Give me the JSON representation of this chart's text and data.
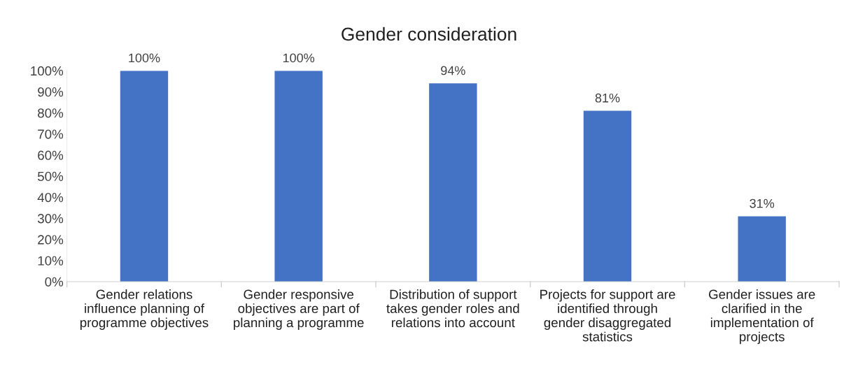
{
  "chart_data": {
    "type": "bar",
    "title": "Gender consideration",
    "categories": [
      "Gender relations\ninfluence planning of\nprogramme objectives",
      "Gender responsive\nobjectives are part of\nplanning a programme",
      "Distribution of support\ntakes gender roles and\nrelations into account",
      "Projects for support are\nidentified through\ngender disaggregated\nstatistics",
      "Gender issues are\nclarified in the\nimplementation of\nprojects"
    ],
    "values": [
      100,
      100,
      94,
      81,
      31
    ],
    "value_labels": [
      "100%",
      "100%",
      "94%",
      "81%",
      "31%"
    ],
    "color": "#4472c4",
    "ylim": [
      0,
      100
    ],
    "yticks": [
      {
        "value": 0,
        "label": "0%"
      },
      {
        "value": 10,
        "label": "10%"
      },
      {
        "value": 20,
        "label": "20%"
      },
      {
        "value": 30,
        "label": "30%"
      },
      {
        "value": 40,
        "label": "40%"
      },
      {
        "value": 50,
        "label": "50%"
      },
      {
        "value": 60,
        "label": "60%"
      },
      {
        "value": 70,
        "label": "70%"
      },
      {
        "value": 80,
        "label": "80%"
      },
      {
        "value": 90,
        "label": "90%"
      },
      {
        "value": 100,
        "label": "100%"
      }
    ],
    "grid": false,
    "legend": false
  }
}
